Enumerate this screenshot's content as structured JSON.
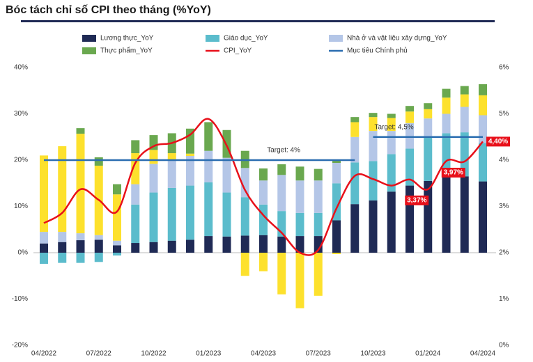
{
  "chart_data": {
    "type": "bar",
    "title": "Bóc tách chỉ số CPI theo tháng (%YoY)",
    "categories": [
      "04/2022",
      null,
      null,
      "07/2022",
      null,
      null,
      "10/2022",
      null,
      null,
      "01/2023",
      null,
      null,
      "04/2023",
      null,
      null,
      "07/2023",
      null,
      null,
      "10/2023",
      null,
      null,
      "01/2024",
      null,
      null,
      "04/2024"
    ],
    "series": [
      {
        "name": "Lương thực_YoY",
        "color": "#1f2a55",
        "values": [
          2,
          2.3,
          2.7,
          2.8,
          1.6,
          2.1,
          2.3,
          2.6,
          2.8,
          3.6,
          3.5,
          3.7,
          3.8,
          3.5,
          3.6,
          3.6,
          7,
          10.5,
          11.3,
          13.2,
          14.5,
          15.5,
          17.3,
          16.5,
          15.4
        ]
      },
      {
        "name": "Giáo dục_YoY",
        "color": "#5bbccc",
        "values": [
          -2.4,
          -2.2,
          -2.2,
          -2,
          -0.6,
          8.3,
          10.7,
          11.4,
          11.7,
          11.6,
          9.5,
          8.3,
          6.6,
          5.5,
          5,
          5,
          8,
          9,
          8.5,
          8.1,
          8,
          9.7,
          8.5,
          9.5,
          8.3
        ]
      },
      {
        "name": "Nhà ở và vật liệu xây dựng_YoY",
        "color": "#b4c6e7",
        "values": [
          2.5,
          2.2,
          1.5,
          1,
          1,
          4.4,
          6.2,
          6,
          6.4,
          6.8,
          7.5,
          6.3,
          5.2,
          7.8,
          7,
          7,
          4.4,
          5.5,
          6.5,
          5,
          5.5,
          3.8,
          4.2,
          5.5,
          6
        ]
      },
      {
        "color": "#fde12d",
        "values": [
          16.5,
          18.5,
          21.5,
          15,
          10,
          6.7,
          3,
          1.5,
          0.5,
          0,
          0,
          -5,
          -4,
          -9,
          -12,
          -9.3,
          -0.3,
          3.2,
          3,
          2.8,
          2.5,
          2,
          3.5,
          2.7,
          4.3
        ]
      },
      {
        "name": "Thực phẩm_YoY",
        "color": "#6aa84f",
        "values": [
          0,
          0,
          1.2,
          1.8,
          2.2,
          2.8,
          3.2,
          4.3,
          5.4,
          6.2,
          6,
          3.7,
          2.6,
          2.3,
          3,
          2.5,
          0.6,
          1.1,
          0.9,
          0.9,
          1.2,
          1.3,
          1.9,
          1.8,
          2.4
        ]
      }
    ],
    "lines": [
      {
        "type": "line",
        "name": "CPI_YoY",
        "color": "#e8101a",
        "axis": "y2",
        "values": [
          2.64,
          2.86,
          3.37,
          3.14,
          2.89,
          3.94,
          4.3,
          4.37,
          4.55,
          4.89,
          4.31,
          3.35,
          2.81,
          2.43,
          2.0,
          2.06,
          2.96,
          3.66,
          3.59,
          3.45,
          3.58,
          3.37,
          3.98,
          3.97,
          4.4
        ],
        "value_labels": [
          null,
          null,
          null,
          null,
          null,
          null,
          null,
          null,
          null,
          null,
          null,
          null,
          null,
          null,
          null,
          null,
          null,
          null,
          null,
          null,
          null,
          "3,37%",
          null,
          "3,97%",
          "4,40%"
        ]
      },
      {
        "type": "step",
        "name": "Mục tiêu Chính phủ",
        "color": "#2a6db0",
        "axis": "y2",
        "values": [
          4,
          4,
          4,
          4,
          4,
          4,
          4,
          4,
          4,
          4,
          4,
          4,
          4,
          4,
          4,
          4,
          4,
          4,
          4.5,
          4.5,
          4.5,
          4.5,
          4.5,
          4.5,
          4.5
        ]
      }
    ],
    "annotations": [
      {
        "text": "Target: 4%",
        "index": 16,
        "value": 4
      },
      {
        "text": "Target: 4,5%",
        "index": 18,
        "value": 4.5
      }
    ],
    "ylim": [
      -20,
      40
    ],
    "yticks": [
      {
        "value": -20,
        "label": "-20%"
      },
      {
        "value": -10,
        "label": "-10%"
      },
      {
        "value": 0,
        "label": "0%"
      },
      {
        "value": 10,
        "label": "10%"
      },
      {
        "value": 20,
        "label": "20%"
      },
      {
        "value": 30,
        "label": "30%"
      },
      {
        "value": 40,
        "label": "40%"
      }
    ],
    "y2lim": [
      0,
      6
    ],
    "y2ticks": [
      {
        "value": 0,
        "label": "0%"
      },
      {
        "value": 1,
        "label": "1%"
      },
      {
        "value": 2,
        "label": "2%"
      },
      {
        "value": 3,
        "label": "3%"
      },
      {
        "value": 4,
        "label": "4%"
      },
      {
        "value": 5,
        "label": "5%"
      },
      {
        "value": 6,
        "label": "6%"
      }
    ],
    "grid": false
  }
}
